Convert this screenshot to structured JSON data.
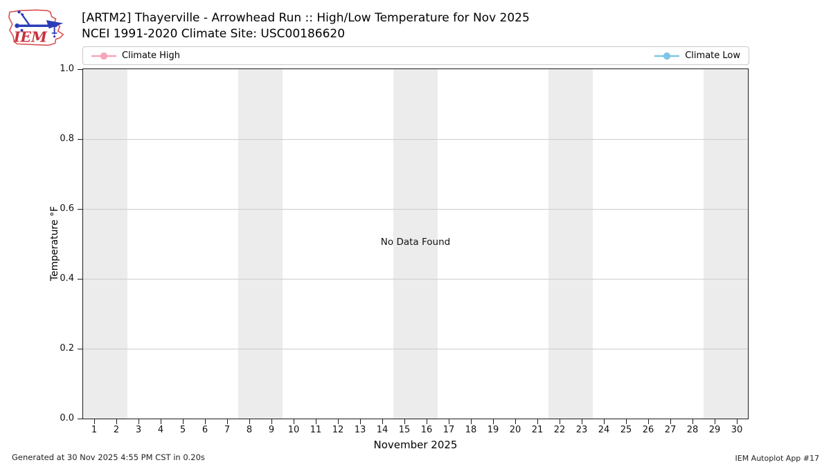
{
  "header": {
    "title_line1": "[ARTM2] Thayerville - Arrowhead Run :: High/Low Temperature for Nov 2025",
    "title_line2": "NCEI 1991-2020 Climate Site: USC00186620",
    "logo_text": "IEM"
  },
  "legend": {
    "high_label": "Climate High",
    "low_label": "Climate Low"
  },
  "colors": {
    "climate_high": "#f6a6ba",
    "climate_low": "#7fc6e4",
    "weekend_band": "#ececec",
    "gridline": "#cccccc",
    "frame": "#1a1a1a",
    "logo_red": "#d94f4f",
    "logo_text_red": "#c9303c",
    "logo_blue": "#2a3db8"
  },
  "chart_data": {
    "type": "line",
    "title": "[ARTM2] Thayerville - Arrowhead Run :: High/Low Temperature for Nov 2025",
    "subtitle": "NCEI 1991-2020 Climate Site: USC00186620",
    "xlabel": "November 2025",
    "ylabel": "Temperature °F",
    "xlim": [
      0.5,
      30.5
    ],
    "ylim": [
      0.0,
      1.0
    ],
    "x_ticks": [
      "1",
      "2",
      "3",
      "4",
      "5",
      "6",
      "7",
      "8",
      "9",
      "10",
      "11",
      "12",
      "13",
      "14",
      "15",
      "16",
      "17",
      "18",
      "19",
      "20",
      "21",
      "22",
      "23",
      "24",
      "25",
      "26",
      "27",
      "28",
      "29",
      "30"
    ],
    "y_ticks": [
      "0.0",
      "0.2",
      "0.4",
      "0.6",
      "0.8",
      "1.0"
    ],
    "grid": "horizontal",
    "legend_position": "top",
    "no_data_text": "No Data Found",
    "weekend_bands": [
      [
        0.5,
        2.5
      ],
      [
        7.5,
        9.5
      ],
      [
        14.5,
        16.5
      ],
      [
        21.5,
        23.5
      ],
      [
        28.5,
        30.5
      ]
    ],
    "series": [
      {
        "name": "Climate High",
        "color": "#f6a6ba",
        "x": [],
        "values": []
      },
      {
        "name": "Climate Low",
        "color": "#7fc6e4",
        "x": [],
        "values": []
      }
    ]
  },
  "footer": {
    "generated": "Generated at 30 Nov 2025 4:55 PM CST in 0.20s",
    "credit": "IEM Autoplot App #17"
  }
}
